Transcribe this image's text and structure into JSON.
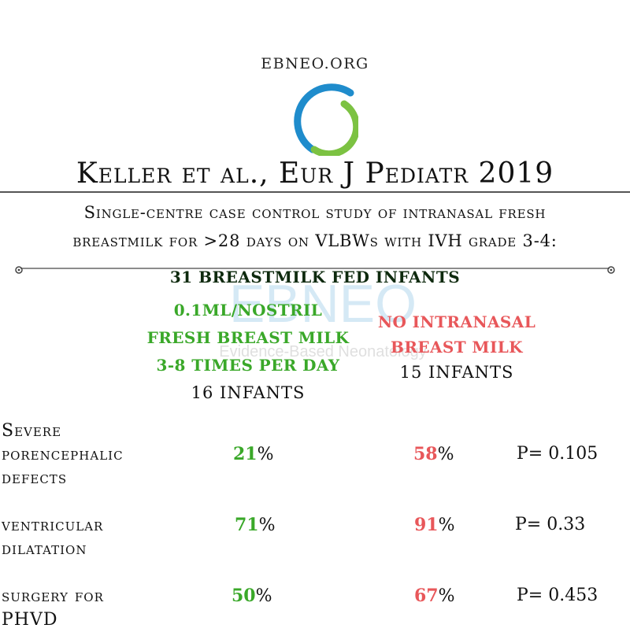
{
  "header": {
    "site": "EBNEO.ORG",
    "title": "Keller et al., Eur J Pediatr 2019"
  },
  "subtitle": {
    "line1": "Single-centre case control study of intranasal fresh",
    "line2": "breastmilk for >28 days on VLBWs with IVH grade 3-4:"
  },
  "group_heading": "31 BREASTMILK FED INFANTS",
  "watermark": {
    "word": "EBNEO",
    "tagline": "Evidence-Based Neonatology"
  },
  "arms": {
    "intervention": {
      "line1": "0.1ML/NOSTRIL",
      "line2": "FRESH BREAST MILK",
      "line3": "3-8 TIMES PER DAY",
      "count": "16 INFANTS"
    },
    "control": {
      "line1": "NO INTRANASAL",
      "line2": "BREAST MILK",
      "count": "15 INFANTS"
    }
  },
  "outcomes": [
    {
      "label_lines": [
        "Severe",
        "porencephalic",
        "defects"
      ],
      "intervention": "21",
      "control": "58",
      "unit": "%",
      "p_value": "P= 0.105"
    },
    {
      "label_lines": [
        "ventricular",
        "dilatation"
      ],
      "intervention": "71",
      "control": "91",
      "unit": "%",
      "p_value": "P= 0.33"
    },
    {
      "label_lines": [
        "surgery for",
        "PHVD"
      ],
      "intervention": "50",
      "control": "67",
      "unit": "%",
      "p_value": "P= 0.453"
    }
  ],
  "colors": {
    "green": "#3aa829",
    "red": "#e8575a",
    "dark_green": "#0e2a0e",
    "logo_blue": "#1f8ccc",
    "logo_green": "#7cc242"
  }
}
